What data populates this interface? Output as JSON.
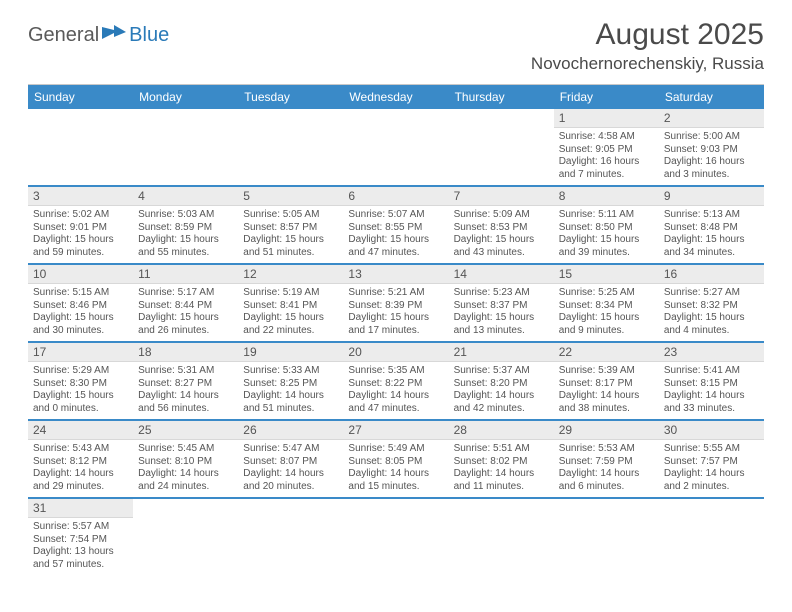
{
  "brand": {
    "part1": "General",
    "part2": "Blue"
  },
  "title": "August 2025",
  "location": "Novochernorechenskiy, Russia",
  "colors": {
    "header_bg": "#3a8ac8",
    "row_divider": "#3a8ac8",
    "date_bg": "#ececec",
    "text": "#4a4a4a",
    "brand_blue": "#2a7ab8"
  },
  "day_headers": [
    "Sunday",
    "Monday",
    "Tuesday",
    "Wednesday",
    "Thursday",
    "Friday",
    "Saturday"
  ],
  "weeks": [
    [
      null,
      null,
      null,
      null,
      null,
      {
        "d": "1",
        "sr": "4:58 AM",
        "ss": "9:05 PM",
        "dl": "16 hours and 7 minutes."
      },
      {
        "d": "2",
        "sr": "5:00 AM",
        "ss": "9:03 PM",
        "dl": "16 hours and 3 minutes."
      }
    ],
    [
      {
        "d": "3",
        "sr": "5:02 AM",
        "ss": "9:01 PM",
        "dl": "15 hours and 59 minutes."
      },
      {
        "d": "4",
        "sr": "5:03 AM",
        "ss": "8:59 PM",
        "dl": "15 hours and 55 minutes."
      },
      {
        "d": "5",
        "sr": "5:05 AM",
        "ss": "8:57 PM",
        "dl": "15 hours and 51 minutes."
      },
      {
        "d": "6",
        "sr": "5:07 AM",
        "ss": "8:55 PM",
        "dl": "15 hours and 47 minutes."
      },
      {
        "d": "7",
        "sr": "5:09 AM",
        "ss": "8:53 PM",
        "dl": "15 hours and 43 minutes."
      },
      {
        "d": "8",
        "sr": "5:11 AM",
        "ss": "8:50 PM",
        "dl": "15 hours and 39 minutes."
      },
      {
        "d": "9",
        "sr": "5:13 AM",
        "ss": "8:48 PM",
        "dl": "15 hours and 34 minutes."
      }
    ],
    [
      {
        "d": "10",
        "sr": "5:15 AM",
        "ss": "8:46 PM",
        "dl": "15 hours and 30 minutes."
      },
      {
        "d": "11",
        "sr": "5:17 AM",
        "ss": "8:44 PM",
        "dl": "15 hours and 26 minutes."
      },
      {
        "d": "12",
        "sr": "5:19 AM",
        "ss": "8:41 PM",
        "dl": "15 hours and 22 minutes."
      },
      {
        "d": "13",
        "sr": "5:21 AM",
        "ss": "8:39 PM",
        "dl": "15 hours and 17 minutes."
      },
      {
        "d": "14",
        "sr": "5:23 AM",
        "ss": "8:37 PM",
        "dl": "15 hours and 13 minutes."
      },
      {
        "d": "15",
        "sr": "5:25 AM",
        "ss": "8:34 PM",
        "dl": "15 hours and 9 minutes."
      },
      {
        "d": "16",
        "sr": "5:27 AM",
        "ss": "8:32 PM",
        "dl": "15 hours and 4 minutes."
      }
    ],
    [
      {
        "d": "17",
        "sr": "5:29 AM",
        "ss": "8:30 PM",
        "dl": "15 hours and 0 minutes."
      },
      {
        "d": "18",
        "sr": "5:31 AM",
        "ss": "8:27 PM",
        "dl": "14 hours and 56 minutes."
      },
      {
        "d": "19",
        "sr": "5:33 AM",
        "ss": "8:25 PM",
        "dl": "14 hours and 51 minutes."
      },
      {
        "d": "20",
        "sr": "5:35 AM",
        "ss": "8:22 PM",
        "dl": "14 hours and 47 minutes."
      },
      {
        "d": "21",
        "sr": "5:37 AM",
        "ss": "8:20 PM",
        "dl": "14 hours and 42 minutes."
      },
      {
        "d": "22",
        "sr": "5:39 AM",
        "ss": "8:17 PM",
        "dl": "14 hours and 38 minutes."
      },
      {
        "d": "23",
        "sr": "5:41 AM",
        "ss": "8:15 PM",
        "dl": "14 hours and 33 minutes."
      }
    ],
    [
      {
        "d": "24",
        "sr": "5:43 AM",
        "ss": "8:12 PM",
        "dl": "14 hours and 29 minutes."
      },
      {
        "d": "25",
        "sr": "5:45 AM",
        "ss": "8:10 PM",
        "dl": "14 hours and 24 minutes."
      },
      {
        "d": "26",
        "sr": "5:47 AM",
        "ss": "8:07 PM",
        "dl": "14 hours and 20 minutes."
      },
      {
        "d": "27",
        "sr": "5:49 AM",
        "ss": "8:05 PM",
        "dl": "14 hours and 15 minutes."
      },
      {
        "d": "28",
        "sr": "5:51 AM",
        "ss": "8:02 PM",
        "dl": "14 hours and 11 minutes."
      },
      {
        "d": "29",
        "sr": "5:53 AM",
        "ss": "7:59 PM",
        "dl": "14 hours and 6 minutes."
      },
      {
        "d": "30",
        "sr": "5:55 AM",
        "ss": "7:57 PM",
        "dl": "14 hours and 2 minutes."
      }
    ],
    [
      {
        "d": "31",
        "sr": "5:57 AM",
        "ss": "7:54 PM",
        "dl": "13 hours and 57 minutes."
      },
      null,
      null,
      null,
      null,
      null,
      null
    ]
  ],
  "labels": {
    "sunrise": "Sunrise:",
    "sunset": "Sunset:",
    "daylight": "Daylight:"
  }
}
